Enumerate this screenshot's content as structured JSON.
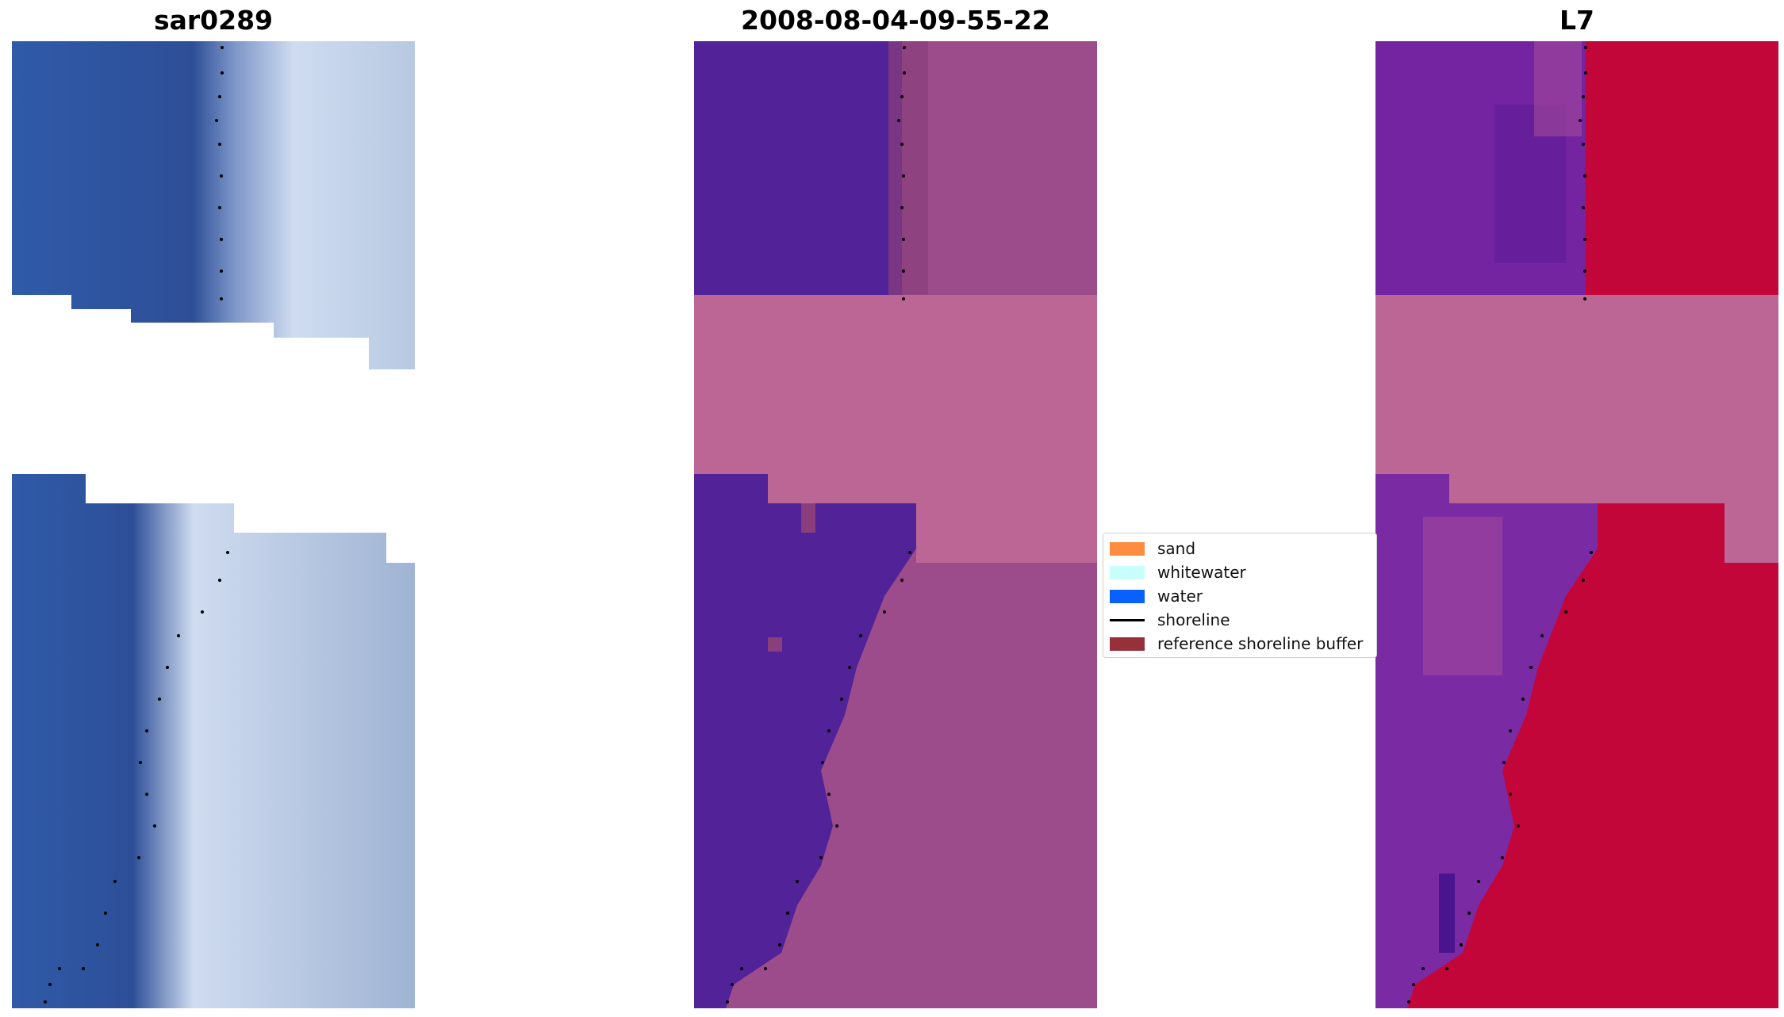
{
  "panels": [
    {
      "title": "sar0289",
      "image": "true-color satellite image tile with dotted shoreline",
      "colors": {
        "water": "#2f4f9a",
        "land": "#c6d2ea"
      }
    },
    {
      "title": "2008-08-04-09-55-22",
      "image": "classified image with water mask and dotted shoreline",
      "colors": {
        "water": "#512298",
        "land": "#9c4c8a",
        "buffer": "#bb6695"
      }
    },
    {
      "title": "L7",
      "image": "index image with dotted shoreline",
      "colors": {
        "water": "#7424a0",
        "land": "#c2063a",
        "buffer": "#bb6695"
      }
    }
  ],
  "legend": {
    "items": [
      {
        "label": "sand",
        "color": "#ff8c3f",
        "kind": "patch"
      },
      {
        "label": "whitewater",
        "color": "#c8fffc",
        "kind": "patch"
      },
      {
        "label": "water",
        "color": "#0860ff",
        "kind": "patch"
      },
      {
        "label": "shoreline",
        "color": "#000000",
        "kind": "line"
      },
      {
        "label": "reference shoreline buffer",
        "color": "#96303a",
        "kind": "patch"
      }
    ]
  }
}
